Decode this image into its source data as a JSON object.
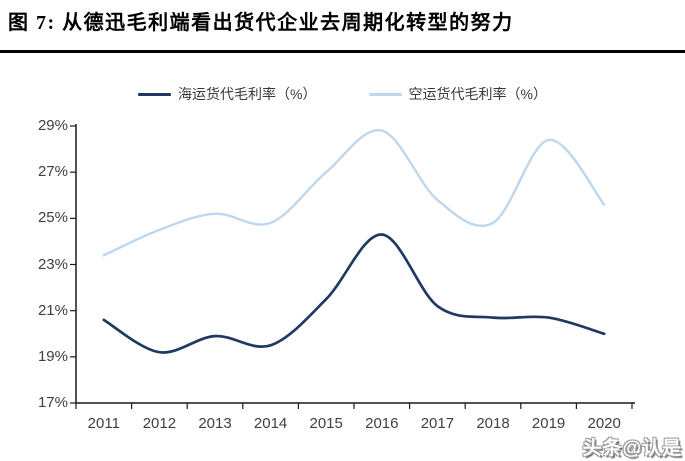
{
  "figure": {
    "title": "图 7: 从德迅毛利端看出货代企业去周期化转型的努力",
    "watermark": "头条@认是"
  },
  "chart_data": {
    "type": "line",
    "title": "图 7: 从德迅毛利端看出货代企业去周期化转型的努力",
    "categories": [
      "2011",
      "2012",
      "2013",
      "2014",
      "2015",
      "2016",
      "2017",
      "2018",
      "2019",
      "2020"
    ],
    "series": [
      {
        "name": "海运货代毛利率（%）",
        "color": "#1f3864",
        "stroke_width": 2.7,
        "values": [
          20.6,
          19.2,
          19.9,
          19.5,
          21.5,
          24.3,
          21.2,
          20.7,
          20.7,
          20.0
        ]
      },
      {
        "name": "空运货代毛利率（%）",
        "color": "#bdd7ee",
        "stroke_width": 2.4,
        "values": [
          23.4,
          24.5,
          25.2,
          24.8,
          27.0,
          28.8,
          25.8,
          24.8,
          28.4,
          25.6
        ]
      }
    ],
    "xlabel": "",
    "ylabel": "",
    "ylim": [
      17,
      29
    ],
    "ytick_labels": [
      "29%",
      "27%",
      "25%",
      "23%",
      "21%",
      "19%",
      "17%"
    ],
    "grid": false,
    "legend_position": "top-center",
    "smoothed": true,
    "axis_color": "#1a1a1a",
    "tick_label_color": "#404040"
  }
}
